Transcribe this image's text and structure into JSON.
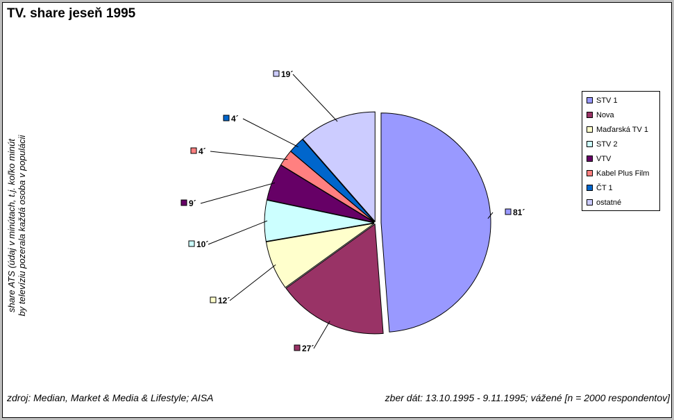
{
  "chart_data": {
    "type": "pie",
    "title": "TV. share jeseň 1995",
    "ylabel_lines": [
      "share ATS (údaj v minútach, t.j. koľko minút",
      "by televíziu pozerala každá osoba v populácii"
    ],
    "categories": [
      "STV 1",
      "Nova",
      "Maďarská TV 1",
      "STV 2",
      "VTV",
      "Kabel Plus Film",
      "ČT 1",
      "ostatné"
    ],
    "values": [
      81,
      27,
      12,
      10,
      9,
      4,
      4,
      19
    ],
    "data_labels": [
      "81´",
      "27´",
      "12´",
      "10´",
      "9´",
      "4´",
      "4´",
      "19´"
    ],
    "colors": [
      "#9999ff",
      "#993366",
      "#ffffcc",
      "#ccffff",
      "#660066",
      "#ff8080",
      "#0066cc",
      "#ccccff"
    ],
    "legend_position": "right",
    "exploded": true
  },
  "footer": {
    "source": "zdroj: Median, Market & Media & Lifestyle; AISA",
    "period": "zber dát: 13.10.1995 - 9.11.1995; vážené [n = 2000 respondentov]"
  }
}
